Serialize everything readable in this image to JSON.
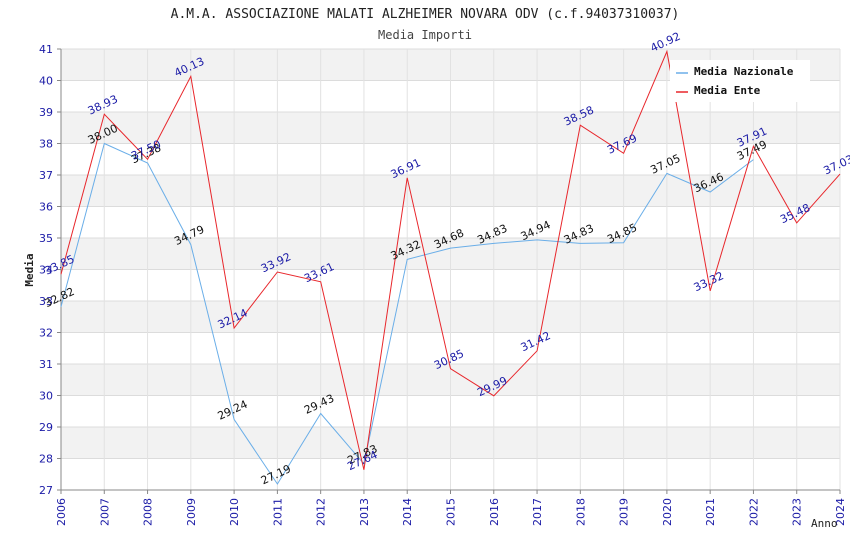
{
  "chart_data": {
    "type": "line",
    "title": "A.M.A. ASSOCIAZIONE MALATI ALZHEIMER NOVARA ODV (c.f.94037310037)",
    "subtitle": "Media Importi",
    "xlabel": "Anno",
    "ylabel": "Media",
    "ylim": [
      27,
      41
    ],
    "y_ticks": [
      "27",
      "28",
      "29",
      "30",
      "31",
      "32",
      "33",
      "34",
      "35",
      "36",
      "37",
      "38",
      "39",
      "40",
      "41"
    ],
    "x": [
      "2006",
      "2007",
      "2008",
      "2009",
      "2010",
      "2011",
      "2012",
      "2013",
      "2014",
      "2015",
      "2016",
      "2017",
      "2018",
      "2019",
      "2020",
      "2021",
      "2022",
      "2023",
      "2024"
    ],
    "legend_position": "top-right",
    "series": [
      {
        "name": "Media Nazionale",
        "color": "#6aaee8",
        "values": [
          32.82,
          38.0,
          37.38,
          34.79,
          29.24,
          27.19,
          29.43,
          27.83,
          34.32,
          34.68,
          34.83,
          34.94,
          34.83,
          34.85,
          37.05,
          36.46,
          37.49,
          null,
          null
        ],
        "labels": [
          "32.82",
          "38.00",
          "37.38",
          "34.79",
          "29.24",
          "27.19",
          "29.43",
          "27.83",
          "34.32",
          "34.68",
          "34.83",
          "34.94",
          "34.83",
          "34.85",
          "37.05",
          "36.46",
          "37.49",
          "",
          ""
        ]
      },
      {
        "name": "Media Ente",
        "color": "#e8262b",
        "values": [
          33.85,
          38.93,
          37.5,
          40.13,
          32.14,
          33.92,
          33.61,
          27.64,
          36.91,
          30.85,
          29.99,
          31.42,
          38.58,
          37.69,
          40.92,
          33.32,
          37.91,
          35.48,
          37.03
        ],
        "labels": [
          "33.85",
          "38.93",
          "37.50",
          "40.13",
          "32.14",
          "33.92",
          "33.61",
          "27.64",
          "36.91",
          "30.85",
          "29.99",
          "31.42",
          "38.58",
          "37.69",
          "40.92",
          "33.32",
          "37.91",
          "35.48",
          "37.03"
        ]
      }
    ]
  }
}
